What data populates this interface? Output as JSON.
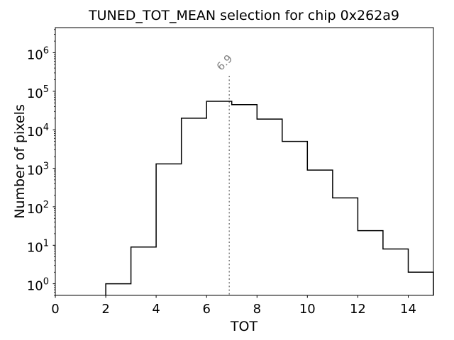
{
  "figure": {
    "title": "TUNED_TOT_MEAN selection for chip 0x262a9",
    "background_color": "#ffffff",
    "axes_color": "#000000"
  },
  "chart_data": {
    "type": "histogram-step",
    "title": "TUNED_TOT_MEAN selection for chip 0x262a9",
    "xlabel": "TOT",
    "ylabel": "Number of pixels",
    "xscale": "linear",
    "yscale": "log",
    "xlim": [
      0,
      15
    ],
    "ylim": [
      0.5,
      4500000
    ],
    "grid": false,
    "legend": null,
    "line_color": "#000000",
    "line_width": 1.5,
    "bin_edges": [
      2,
      3,
      4,
      5,
      6,
      7,
      8,
      9,
      10,
      11,
      12,
      13,
      14,
      15
    ],
    "counts": [
      1,
      9,
      1300,
      20000,
      55000,
      45000,
      19000,
      5000,
      900,
      170,
      24,
      8,
      2
    ],
    "x_major_ticks": [
      0,
      2,
      4,
      6,
      8,
      10,
      12,
      14
    ],
    "y_major_tick_exponents": [
      0,
      1,
      2,
      3,
      4,
      5,
      6
    ],
    "y_tick_base": "10",
    "vline": {
      "x": 6.9,
      "label": "6.9",
      "color": "#808080",
      "style": "dotted"
    }
  }
}
